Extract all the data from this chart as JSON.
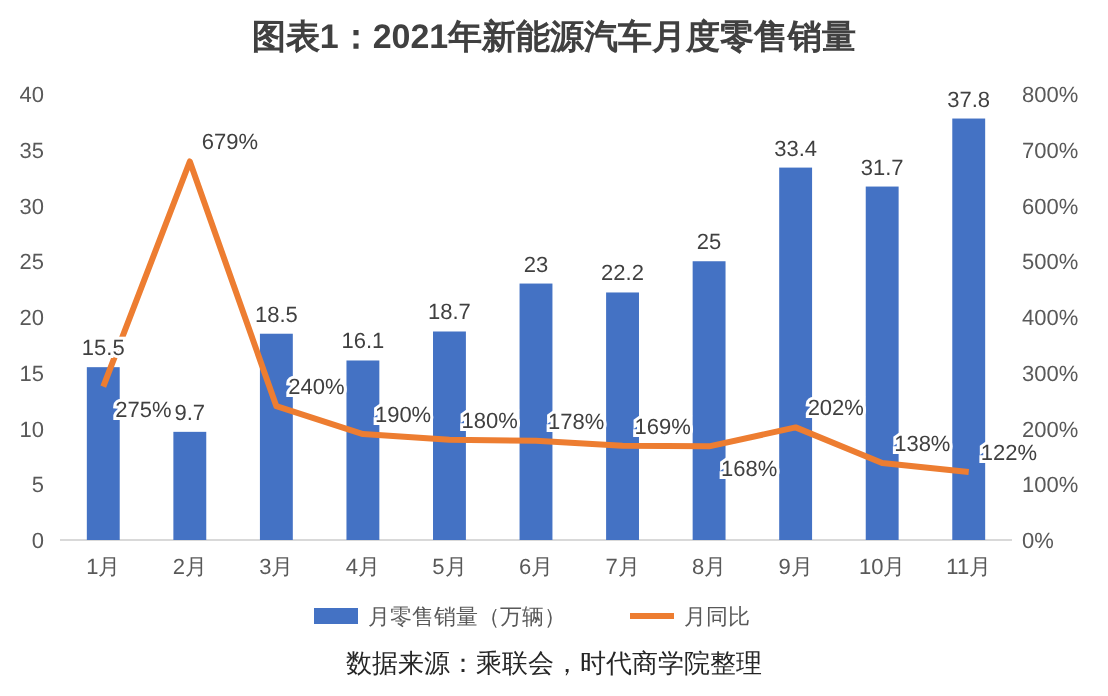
{
  "chart_data": {
    "type": "bar",
    "title": "图表1：2021年新能源汽车月度零售销量",
    "categories": [
      "1月",
      "2月",
      "3月",
      "4月",
      "5月",
      "6月",
      "7月",
      "8月",
      "9月",
      "10月",
      "11月"
    ],
    "series": [
      {
        "name": "月零售销量（万辆）",
        "type": "bar",
        "color": "#4472c4",
        "values": [
          15.5,
          9.7,
          18.5,
          16.1,
          18.7,
          23,
          22.2,
          25,
          33.4,
          31.7,
          37.8
        ],
        "value_labels": [
          "15.5",
          "9.7",
          "18.5",
          "16.1",
          "18.7",
          "23",
          "22.2",
          "25",
          "33.4",
          "31.7",
          "37.8"
        ]
      },
      {
        "name": "月同比",
        "type": "line",
        "axis": "y2",
        "color": "#ed7d31",
        "values": [
          275,
          679,
          240,
          190,
          180,
          178,
          169,
          168,
          202,
          138,
          122
        ],
        "value_labels": [
          "275%",
          "679%",
          "240%",
          "190%",
          "180%",
          "178%",
          "169%",
          "168%",
          "202%",
          "138%",
          "122%"
        ]
      }
    ],
    "ylim": [
      0,
      40
    ],
    "yticks": [
      0,
      5,
      10,
      15,
      20,
      25,
      30,
      35,
      40
    ],
    "y2lim": [
      0,
      800
    ],
    "y2ticks": [
      {
        "value": 0,
        "label": "0%"
      },
      {
        "value": 100,
        "label": "100%"
      },
      {
        "value": 200,
        "label": "200%"
      },
      {
        "value": 300,
        "label": "300%"
      },
      {
        "value": 400,
        "label": "400%"
      },
      {
        "value": 500,
        "label": "500%"
      },
      {
        "value": 600,
        "label": "600%"
      },
      {
        "value": 700,
        "label": "700%"
      },
      {
        "value": 800,
        "label": "800%"
      }
    ],
    "legend": "bottom",
    "marker": "none",
    "line_style": "solid",
    "annotations": [
      "数据来源：乘联会，时代商学院整理"
    ]
  }
}
